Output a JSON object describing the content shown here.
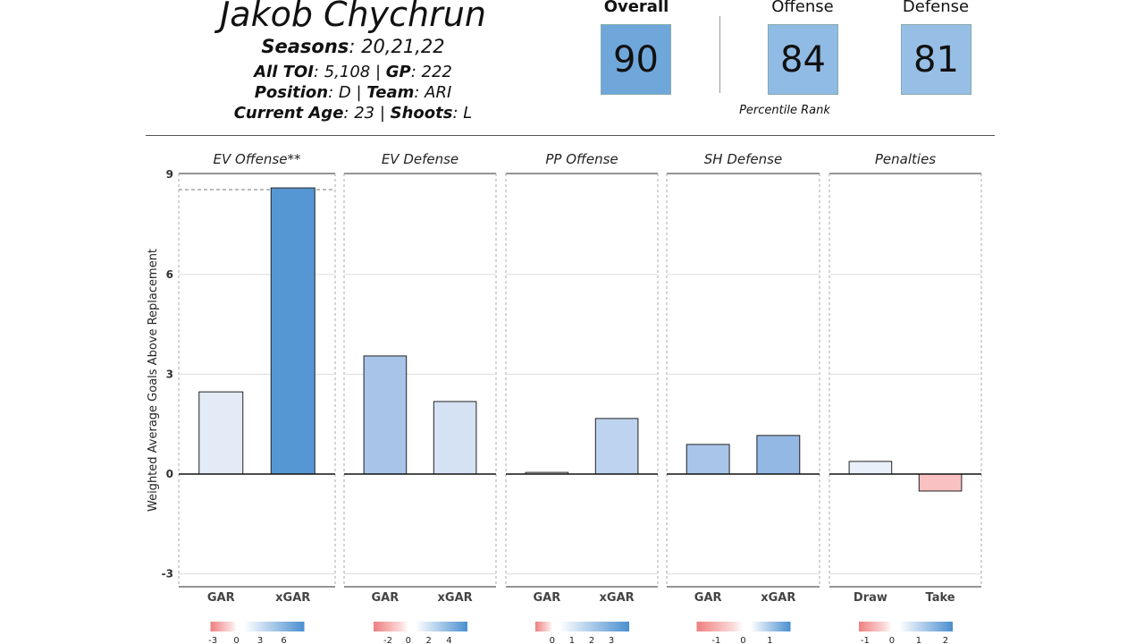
{
  "header": {
    "name": "Jakob Chychrun",
    "seasons_label": "Seasons",
    "seasons": "20,21,22",
    "toi_label": "All TOI",
    "toi": "5,108",
    "gp_label": "GP",
    "gp": "222",
    "position_label": "Position",
    "position": "D",
    "team_label": "Team",
    "team": "ARI",
    "age_label": "Current  Age",
    "age": "23",
    "shoots_label": "Shoots",
    "shoots": "L"
  },
  "ratings": {
    "overall_label": "Overall",
    "overall": "90",
    "offense_label": "Offense",
    "offense": "84",
    "defense_label": "Defense",
    "defense": "81",
    "percentile_label": "Percentile Rank",
    "colors": {
      "overall": "#6fa7da",
      "offense": "#8fbbe4",
      "defense": "#97bfe5"
    }
  },
  "chart_data": {
    "type": "bar",
    "ylabel": "Weighted Average Goals Above Replacement",
    "ylim": [
      -3.4,
      9
    ],
    "yticks": [
      9,
      6,
      3,
      0,
      -3
    ],
    "grid": true,
    "panels": [
      {
        "title": "EV Offense**",
        "categories": [
          "GAR",
          "xGAR"
        ],
        "values": [
          2.47,
          8.6
        ],
        "colors": [
          "#e3ebf6",
          "#5597d3"
        ],
        "reference_line": 8.55,
        "legend": {
          "range": [
            -3.3,
            8.6
          ],
          "ticks": [
            -3,
            0,
            3,
            6
          ]
        }
      },
      {
        "title": "EV Defense",
        "categories": [
          "GAR",
          "xGAR"
        ],
        "values": [
          3.55,
          2.18
        ],
        "colors": [
          "#a8c4e8",
          "#d5e2f4"
        ],
        "legend": {
          "range": [
            -3.4,
            5.8
          ],
          "ticks": [
            -2,
            0,
            2,
            4
          ]
        }
      },
      {
        "title": "PP Offense",
        "categories": [
          "GAR",
          "xGAR"
        ],
        "values": [
          0.05,
          1.67
        ],
        "colors": [
          "#f4f7fb",
          "#bdd3ef"
        ],
        "legend": {
          "range": [
            -0.85,
            3.9
          ],
          "ticks": [
            0,
            1,
            2,
            3
          ]
        }
      },
      {
        "title": "SH Defense",
        "categories": [
          "GAR",
          "xGAR"
        ],
        "values": [
          0.89,
          1.16
        ],
        "colors": [
          "#a9c5e9",
          "#94b8e4"
        ],
        "legend": {
          "range": [
            -1.73,
            1.77
          ],
          "ticks": [
            -1,
            0,
            1
          ]
        }
      },
      {
        "title": "Penalties",
        "categories": [
          "Draw",
          "Take"
        ],
        "values": [
          0.38,
          -0.51
        ],
        "colors": [
          "#e9f0f9",
          "#f9c1c1"
        ],
        "legend": {
          "range": [
            -1.23,
            2.27
          ],
          "ticks": [
            -1,
            0,
            1,
            2
          ]
        }
      }
    ]
  }
}
